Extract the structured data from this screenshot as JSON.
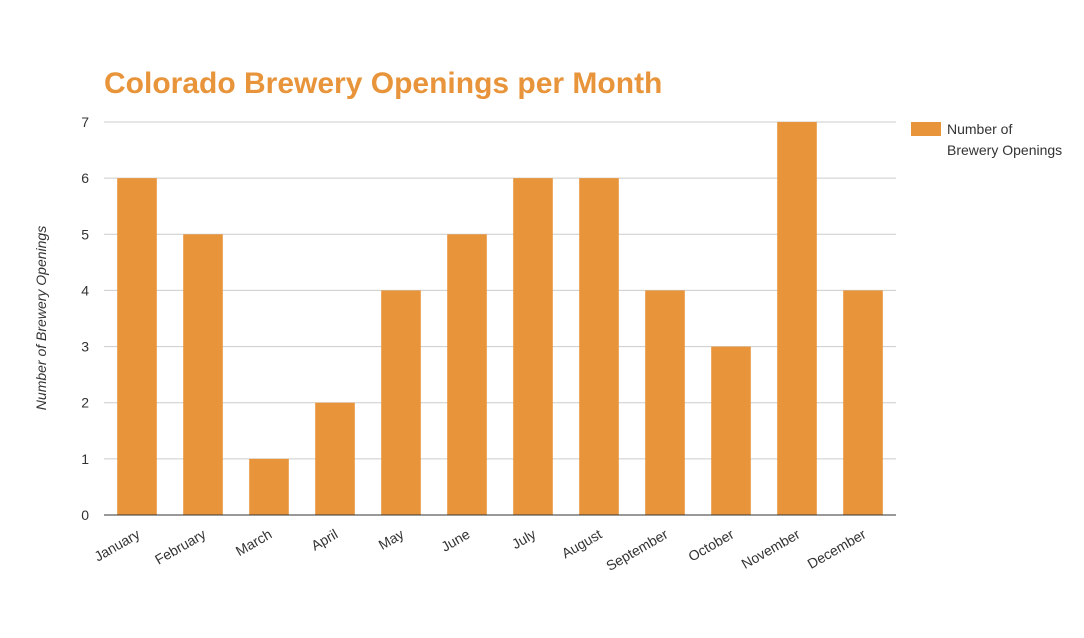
{
  "chart_data": {
    "type": "bar",
    "title": "Colorado Brewery Openings per Month",
    "xlabel": "",
    "ylabel": "Number of Brewery Openings",
    "categories": [
      "January",
      "February",
      "March",
      "April",
      "May",
      "June",
      "July",
      "August",
      "September",
      "October",
      "November",
      "December"
    ],
    "series": [
      {
        "name": "Number of Brewery Openings",
        "values": [
          6,
          5,
          1,
          2,
          4,
          5,
          6,
          6,
          4,
          3,
          7,
          4
        ]
      }
    ],
    "ylim": [
      0,
      7
    ],
    "yticks": [
      0,
      1,
      2,
      3,
      4,
      5,
      6,
      7
    ],
    "grid": true,
    "legend": {
      "position": "right",
      "lines": [
        "Number of",
        "Brewery Openings"
      ]
    },
    "colors": {
      "bar": "#e8943a",
      "title": "#e8943a",
      "grid": "#cccccc",
      "axis": "#333333"
    }
  }
}
